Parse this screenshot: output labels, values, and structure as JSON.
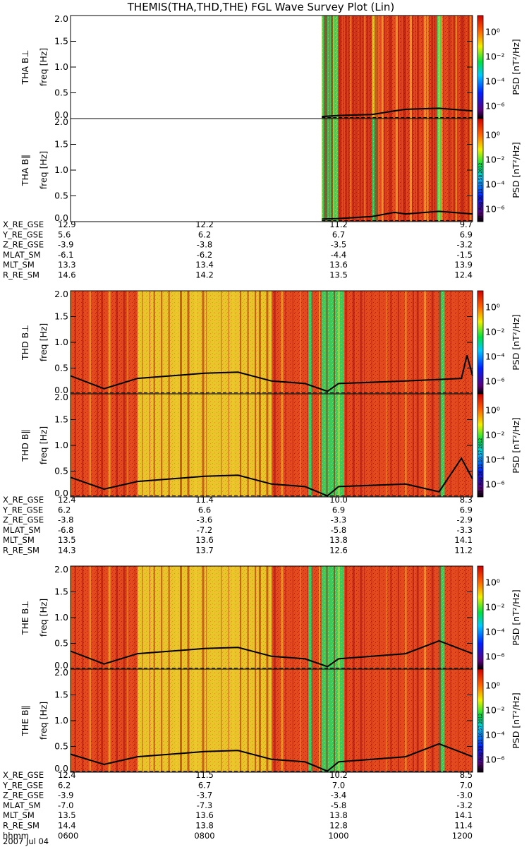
{
  "title": "THEMIS(THA,THD,THE) FGL Wave Survey Plot (Lin)",
  "colors": {
    "frame": "#000000",
    "background": "#ffffff"
  },
  "colorbar": {
    "label": "PSD [nT²/Hz]",
    "ticks": [
      "10⁰",
      "10⁻²",
      "10⁻⁴",
      "10⁻⁶"
    ],
    "scale": "log"
  },
  "freq_ticks": [
    "0.0",
    "0.5",
    "1.0",
    "1.5",
    "2.0"
  ],
  "freq_label": "freq [Hz]",
  "timestamp": "Thu Aug 30 11:10:58 2012",
  "probes": [
    {
      "id": "THA",
      "panels": [
        {
          "name": "THA B⊥",
          "timestamp": ""
        },
        {
          "name": "THA B∥",
          "timestamp": "Thu Aug 30 11:10:58 2012"
        }
      ],
      "ephemeris": [
        {
          "label": "X_RE_GSE",
          "values": [
            "12.9",
            "12.2",
            "11.2",
            "9.7"
          ]
        },
        {
          "label": "Y_RE_GSE",
          "values": [
            "5.6",
            "6.2",
            "6.7",
            "6.9"
          ]
        },
        {
          "label": "Z_RE_GSE",
          "values": [
            "-3.9",
            "-3.8",
            "-3.5",
            "-3.2"
          ]
        },
        {
          "label": "MLAT_SM",
          "values": [
            "-6.1",
            "-6.2",
            "-4.4",
            "-1.5"
          ]
        },
        {
          "label": "MLT_SM",
          "values": [
            "13.3",
            "13.4",
            "13.6",
            "13.9"
          ]
        },
        {
          "label": "R_RE_SM",
          "values": [
            "14.6",
            "14.2",
            "13.5",
            "12.4"
          ]
        }
      ]
    },
    {
      "id": "THD",
      "panels": [
        {
          "name": "THD B⊥",
          "timestamp": ""
        },
        {
          "name": "THD B∥",
          "timestamp": "Thu Aug 30 11:10:57 2012"
        }
      ],
      "ephemeris": [
        {
          "label": "X_RE_GSE",
          "values": [
            "12.4",
            "11.4",
            "10.0",
            "8.3"
          ]
        },
        {
          "label": "Y_RE_GSE",
          "values": [
            "6.2",
            "6.6",
            "6.9",
            "6.9"
          ]
        },
        {
          "label": "Z_RE_GSE",
          "values": [
            "-3.8",
            "-3.6",
            "-3.3",
            "-2.9"
          ]
        },
        {
          "label": "MLAT_SM",
          "values": [
            "-6.8",
            "-7.2",
            "-5.8",
            "-3.3"
          ]
        },
        {
          "label": "MLT_SM",
          "values": [
            "13.5",
            "13.6",
            "13.8",
            "14.1"
          ]
        },
        {
          "label": "R_RE_SM",
          "values": [
            "14.3",
            "13.7",
            "12.6",
            "11.2"
          ]
        }
      ]
    },
    {
      "id": "THE",
      "panels": [
        {
          "name": "THE B⊥",
          "timestamp": ""
        },
        {
          "name": "THE B∥",
          "timestamp": "Thu Aug 30 11:10:57 2012"
        }
      ],
      "ephemeris": [
        {
          "label": "X_RE_GSE",
          "values": [
            "12.4",
            "11.5",
            "10.2",
            "8.5"
          ]
        },
        {
          "label": "Y_RE_GSE",
          "values": [
            "6.2",
            "6.7",
            "7.0",
            "7.0"
          ]
        },
        {
          "label": "Z_RE_GSE",
          "values": [
            "-3.9",
            "-3.7",
            "-3.4",
            "-3.0"
          ]
        },
        {
          "label": "MLAT_SM",
          "values": [
            "-7.0",
            "-7.3",
            "-5.8",
            "-3.2"
          ]
        },
        {
          "label": "MLT_SM",
          "values": [
            "13.5",
            "13.6",
            "13.8",
            "14.1"
          ]
        },
        {
          "label": "R_RE_SM",
          "values": [
            "14.4",
            "13.8",
            "12.8",
            "11.4"
          ]
        },
        {
          "label": "hhmm",
          "values": [
            "0600",
            "0800",
            "1000",
            "1200"
          ]
        }
      ]
    }
  ],
  "date_label": "2007 Jul 04",
  "chart_data": {
    "type": "heatmap",
    "title": "THEMIS(THA,THD,THE) FGL Wave Survey Plot (Lin)",
    "x": {
      "label": "hhmm",
      "range": [
        "0600",
        "1200"
      ],
      "ticks": [
        "0600",
        "0800",
        "1000",
        "1200"
      ],
      "date": "2007 Jul 04"
    },
    "y": {
      "label": "freq [Hz]",
      "range": [
        0,
        2.0
      ],
      "ticks": [
        0.0,
        0.5,
        1.0,
        1.5,
        2.0
      ]
    },
    "z": {
      "label": "PSD [nT²/Hz]",
      "scale": "log",
      "range": [
        1e-07,
        10
      ]
    },
    "grid": false,
    "panels": [
      {
        "name": "THA B⊥",
        "data_start": "0945",
        "line_hz": [
          [
            945,
            0.04
          ],
          [
            1000,
            0.06
          ],
          [
            1030,
            0.08
          ],
          [
            1050,
            0.15
          ],
          [
            1100,
            0.18
          ],
          [
            1130,
            0.2
          ],
          [
            1200,
            0.15
          ]
        ],
        "bands": [
          [
            "0945",
            "1000",
            "green"
          ],
          [
            "1000",
            "1200",
            "red"
          ],
          [
            "1030",
            "1035",
            "yellow"
          ],
          [
            "1128",
            "1132",
            "green"
          ]
        ]
      },
      {
        "name": "THA B∥",
        "data_start": "0945",
        "line_hz": [
          [
            945,
            0.05
          ],
          [
            1000,
            0.06
          ],
          [
            1030,
            0.1
          ],
          [
            1050,
            0.18
          ],
          [
            1100,
            0.15
          ],
          [
            1130,
            0.2
          ],
          [
            1200,
            0.15
          ]
        ],
        "bands": [
          [
            "0945",
            "1000",
            "green"
          ],
          [
            "1000",
            "1200",
            "red"
          ],
          [
            "1030",
            "1035",
            "green"
          ],
          [
            "1128",
            "1132",
            "green"
          ]
        ]
      },
      {
        "name": "THD B⊥",
        "data_start": "0600",
        "line_hz": [
          [
            600,
            0.35
          ],
          [
            630,
            0.1
          ],
          [
            700,
            0.3
          ],
          [
            800,
            0.4
          ],
          [
            830,
            0.42
          ],
          [
            900,
            0.25
          ],
          [
            930,
            0.2
          ],
          [
            950,
            0.05
          ],
          [
            1000,
            0.2
          ],
          [
            1100,
            0.25
          ],
          [
            1150,
            0.3
          ],
          [
            1155,
            0.75
          ],
          [
            1200,
            0.35
          ]
        ],
        "bands": [
          [
            "0600",
            "1200",
            "red"
          ],
          [
            "0700",
            "0900",
            "yellow"
          ],
          [
            "0933",
            "0937",
            "green"
          ],
          [
            "0945",
            "1005",
            "green"
          ],
          [
            "1130",
            "1135",
            "green"
          ]
        ]
      },
      {
        "name": "THD B∥",
        "data_start": "0600",
        "line_hz": [
          [
            600,
            0.38
          ],
          [
            630,
            0.15
          ],
          [
            700,
            0.3
          ],
          [
            800,
            0.4
          ],
          [
            830,
            0.42
          ],
          [
            900,
            0.25
          ],
          [
            930,
            0.2
          ],
          [
            950,
            0.02
          ],
          [
            1000,
            0.2
          ],
          [
            1100,
            0.25
          ],
          [
            1130,
            0.1
          ],
          [
            1150,
            0.75
          ],
          [
            1200,
            0.35
          ]
        ],
        "bands": [
          [
            "0600",
            "1200",
            "red"
          ],
          [
            "0700",
            "0900",
            "yellow"
          ],
          [
            "0933",
            "0937",
            "green"
          ],
          [
            "0945",
            "1005",
            "green"
          ],
          [
            "1130",
            "1135",
            "green"
          ]
        ]
      },
      {
        "name": "THE B⊥",
        "data_start": "0600",
        "line_hz": [
          [
            600,
            0.35
          ],
          [
            630,
            0.1
          ],
          [
            700,
            0.3
          ],
          [
            800,
            0.4
          ],
          [
            830,
            0.42
          ],
          [
            900,
            0.25
          ],
          [
            930,
            0.2
          ],
          [
            950,
            0.05
          ],
          [
            1000,
            0.2
          ],
          [
            1100,
            0.3
          ],
          [
            1130,
            0.55
          ],
          [
            1200,
            0.3
          ]
        ],
        "bands": [
          [
            "0600",
            "1200",
            "red"
          ],
          [
            "0700",
            "0900",
            "yellow"
          ],
          [
            "0933",
            "0937",
            "green"
          ],
          [
            "0945",
            "1005",
            "green"
          ],
          [
            "1130",
            "1135",
            "green"
          ]
        ]
      },
      {
        "name": "THE B∥",
        "data_start": "0600",
        "line_hz": [
          [
            600,
            0.35
          ],
          [
            630,
            0.15
          ],
          [
            700,
            0.3
          ],
          [
            800,
            0.4
          ],
          [
            830,
            0.42
          ],
          [
            900,
            0.25
          ],
          [
            930,
            0.2
          ],
          [
            950,
            0.02
          ],
          [
            1000,
            0.2
          ],
          [
            1100,
            0.3
          ],
          [
            1130,
            0.55
          ],
          [
            1200,
            0.3
          ]
        ],
        "bands": [
          [
            "0600",
            "1200",
            "red"
          ],
          [
            "0700",
            "0900",
            "yellow"
          ],
          [
            "0933",
            "0937",
            "green"
          ],
          [
            "0945",
            "1005",
            "green"
          ],
          [
            "1130",
            "1135",
            "green"
          ]
        ]
      }
    ]
  }
}
